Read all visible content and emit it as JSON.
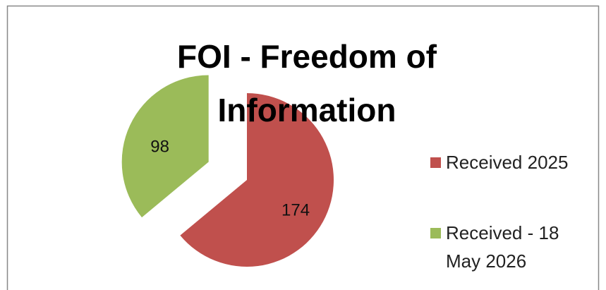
{
  "chart_data": {
    "type": "pie",
    "title": "FOI - Freedom of Information",
    "categories": [
      "Received 2025",
      "Received - 18 May 2026"
    ],
    "values": [
      174,
      98
    ],
    "colors": [
      "#c0504d",
      "#9bbb59"
    ],
    "legend": "right"
  }
}
